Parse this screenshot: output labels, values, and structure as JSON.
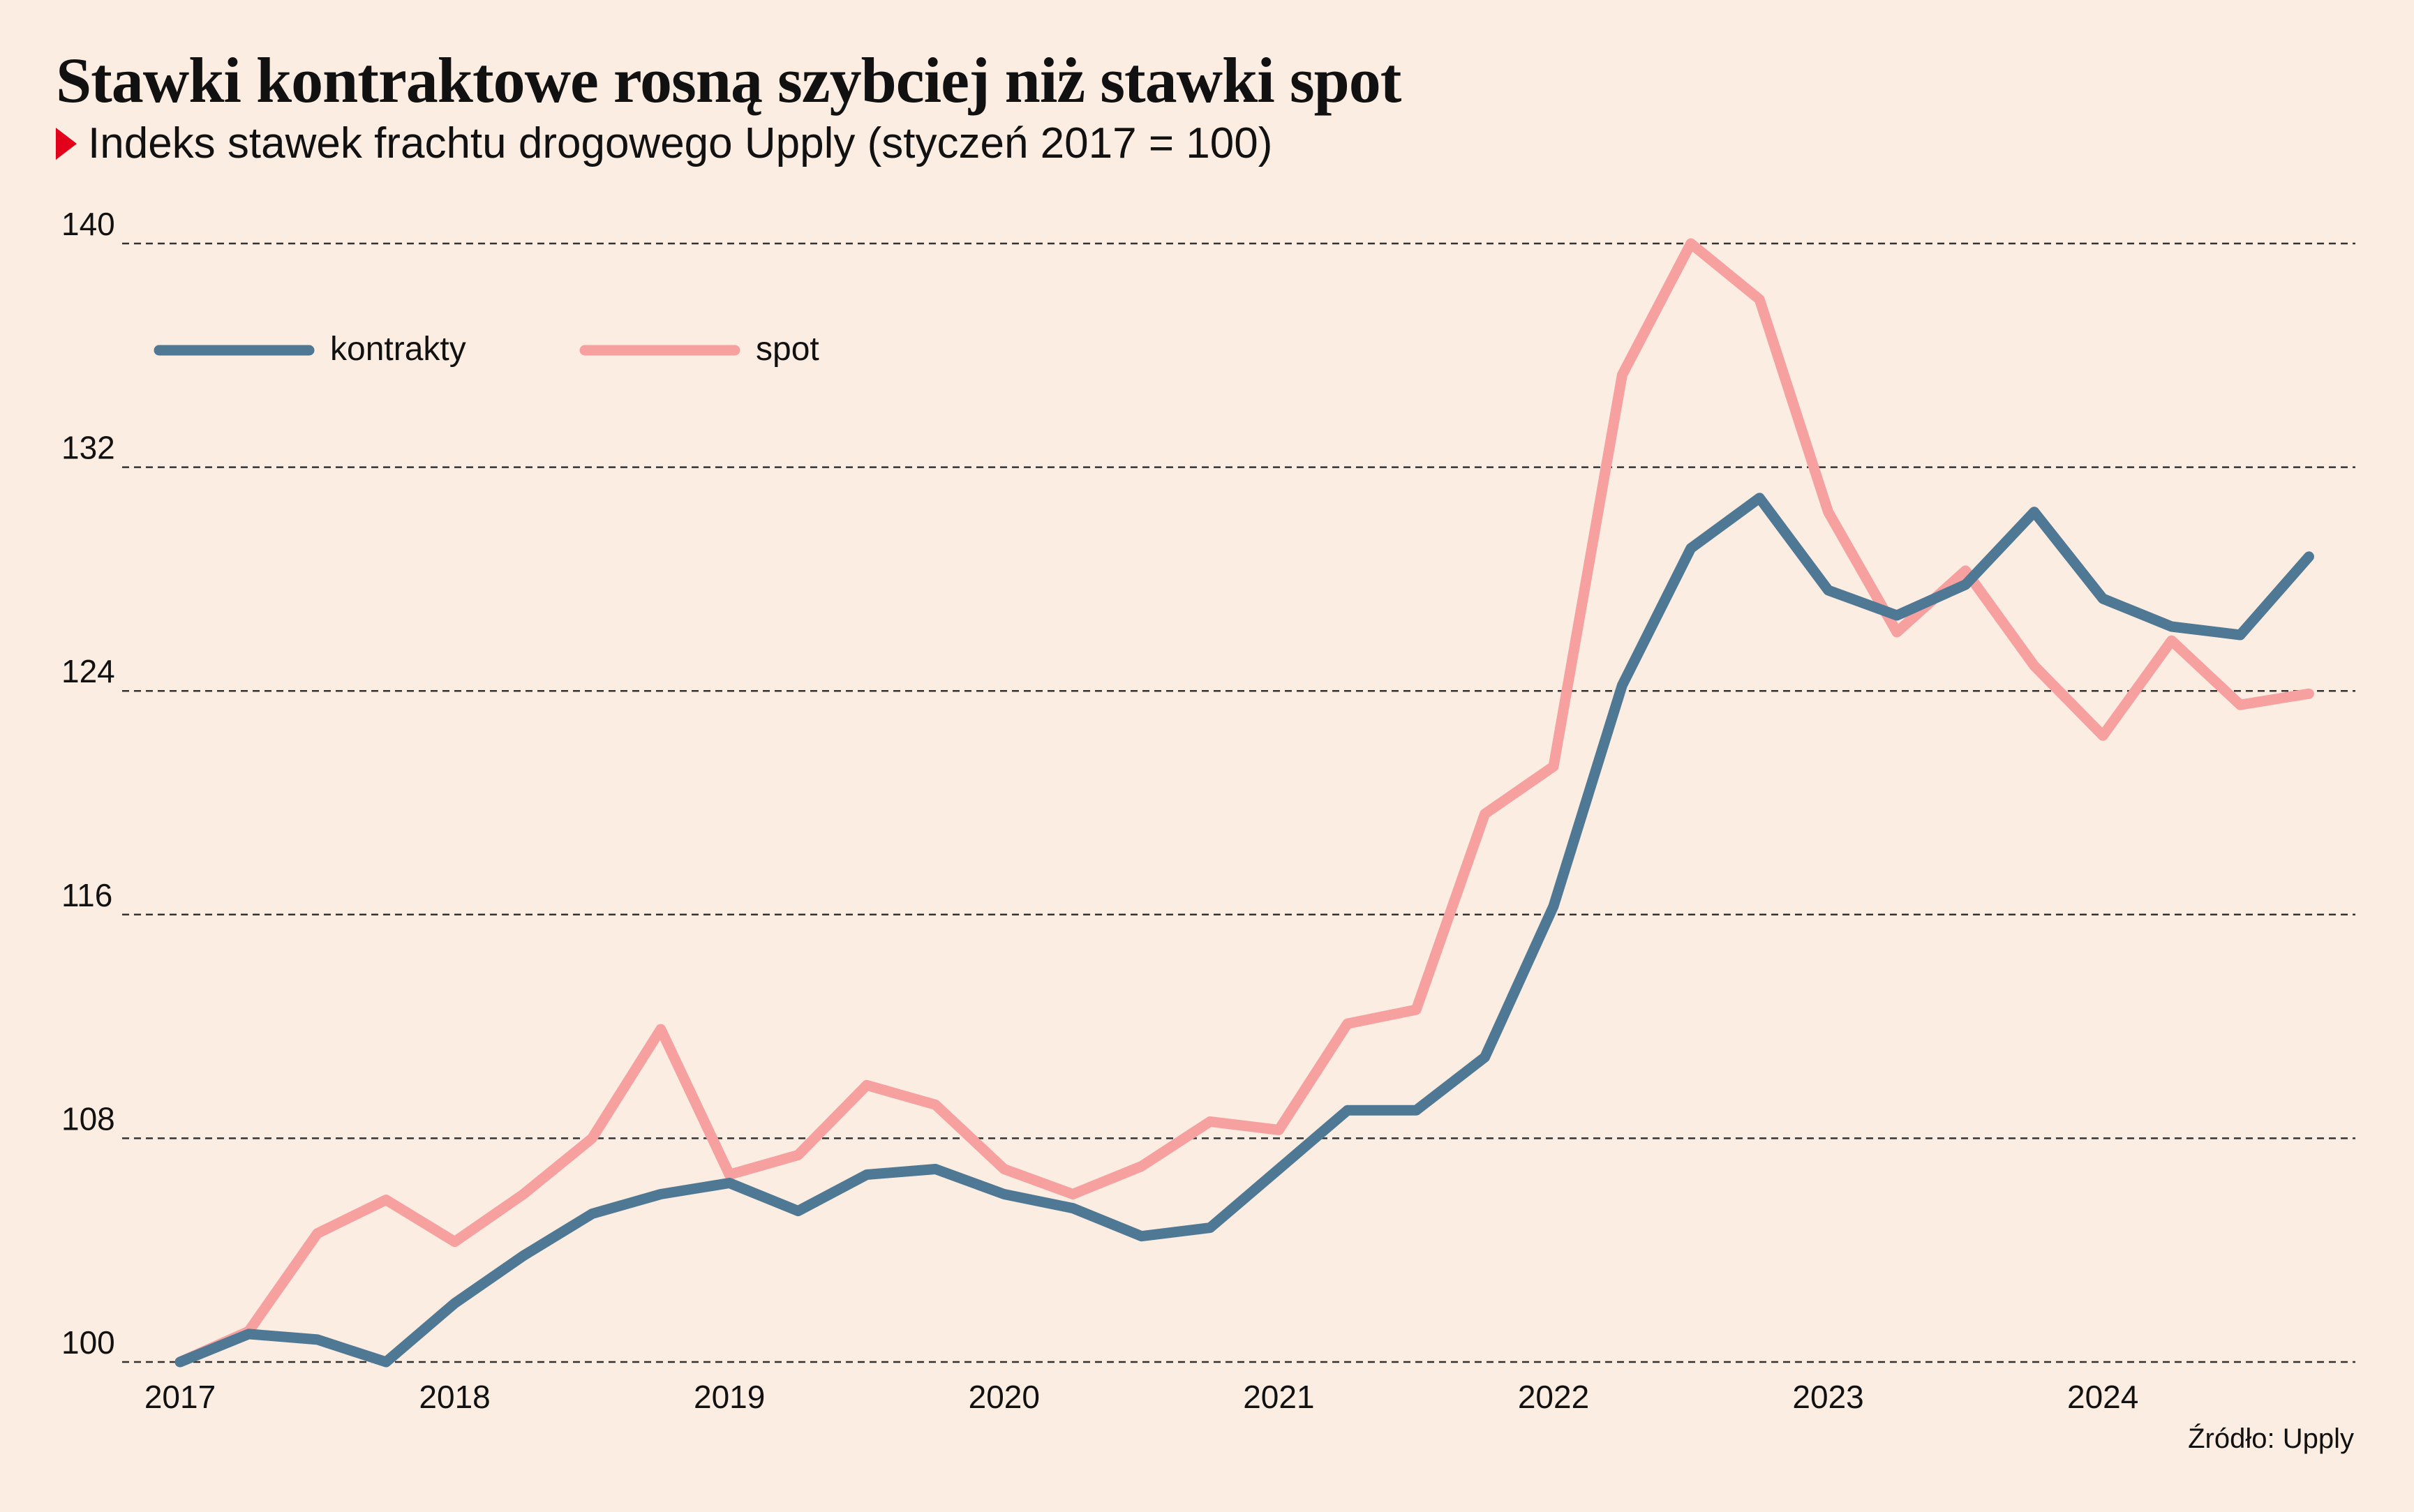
{
  "title": "Stawki kontraktowe rosną szybciej niż stawki spot",
  "subtitle": "Indeks stawek frachtu drogowego Upply (styczeń 2017 = 100)",
  "source": "Źródło: Upply",
  "chart_data": {
    "type": "line",
    "title": "Stawki kontraktowe rosną szybciej niż stawki spot",
    "subtitle": "Indeks stawek frachtu drogowego Upply (styczeń 2017 = 100)",
    "xlabel": "",
    "ylabel": "",
    "ylim": [
      100,
      140
    ],
    "yticks": [
      100,
      108,
      116,
      124,
      132,
      140
    ],
    "xticks": [
      "2017",
      "2018",
      "2019",
      "2020",
      "2021",
      "2022",
      "2023",
      "2024"
    ],
    "grid": "horizontal dashed",
    "legend": "top-left",
    "x": [
      "2017-Q1",
      "2017-Q2",
      "2017-Q3",
      "2017-Q4",
      "2018-Q1",
      "2018-Q2",
      "2018-Q3",
      "2018-Q4",
      "2019-Q1",
      "2019-Q2",
      "2019-Q3",
      "2019-Q4",
      "2020-Q1",
      "2020-Q2",
      "2020-Q3",
      "2020-Q4",
      "2021-Q1",
      "2021-Q2",
      "2021-Q3",
      "2021-Q4",
      "2022-Q1",
      "2022-Q2",
      "2022-Q3",
      "2022-Q4",
      "2023-Q1",
      "2023-Q2",
      "2023-Q3",
      "2023-Q4",
      "2024-Q1",
      "2024-Q2",
      "2024-Q3",
      "2024-Q4"
    ],
    "series": [
      {
        "name": "kontrakty",
        "color": "#4F7895",
        "values": [
          100.0,
          101.0,
          100.8,
          100.0,
          102.1,
          103.8,
          105.3,
          106.0,
          106.4,
          105.4,
          106.7,
          106.9,
          106.0,
          105.5,
          104.5,
          104.8,
          106.9,
          109.0,
          109.0,
          110.9,
          116.3,
          124.2,
          129.1,
          130.9,
          127.6,
          126.7,
          127.8,
          130.4,
          127.3,
          126.3,
          126.0,
          128.8
        ]
      },
      {
        "name": "spot",
        "color": "#F7A0A0",
        "values": [
          100.0,
          101.1,
          104.6,
          105.8,
          104.3,
          106.0,
          108.0,
          111.9,
          106.7,
          107.4,
          109.9,
          109.2,
          106.9,
          106.0,
          107.0,
          108.6,
          108.3,
          112.1,
          112.6,
          119.6,
          121.3,
          135.3,
          140.0,
          138.0,
          130.4,
          126.1,
          128.3,
          124.9,
          122.4,
          125.8,
          123.5,
          123.9
        ]
      }
    ]
  }
}
